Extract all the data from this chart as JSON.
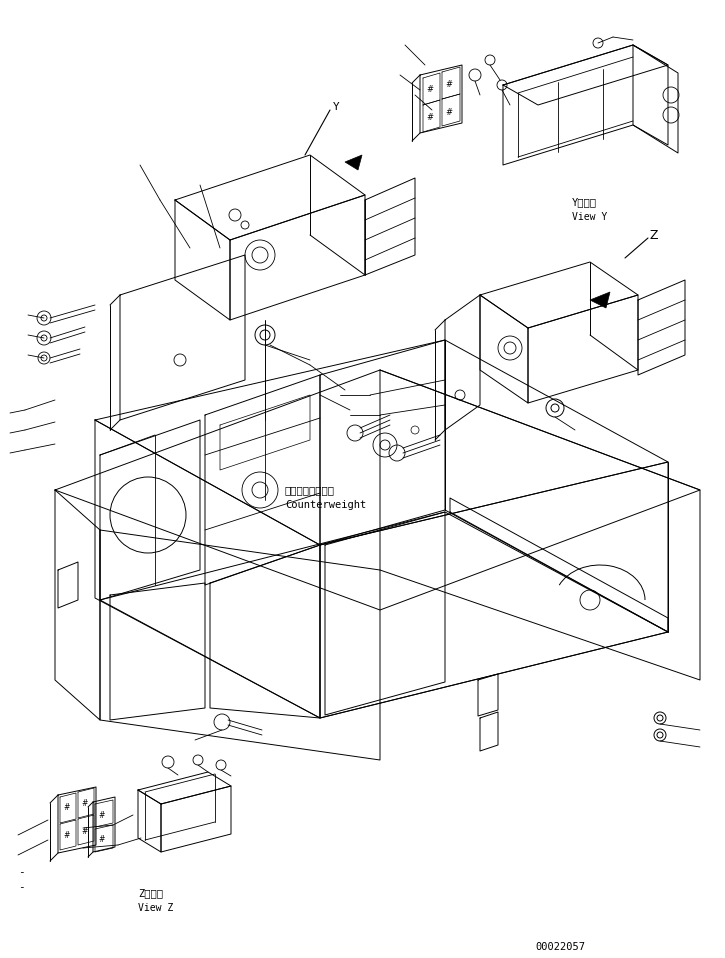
{
  "background_color": "#ffffff",
  "line_color": "#000000",
  "part_number": "00022057",
  "label_view_y_kanji": "Y　　視",
  "label_view_y": "View Y",
  "label_view_z_kanji": "Z　　視",
  "label_view_z": "View Z",
  "label_counterweight_jp": "カウンタウェイト",
  "label_counterweight_en": "Counterweight",
  "figsize": [
    7.25,
    9.58
  ],
  "dpi": 100
}
